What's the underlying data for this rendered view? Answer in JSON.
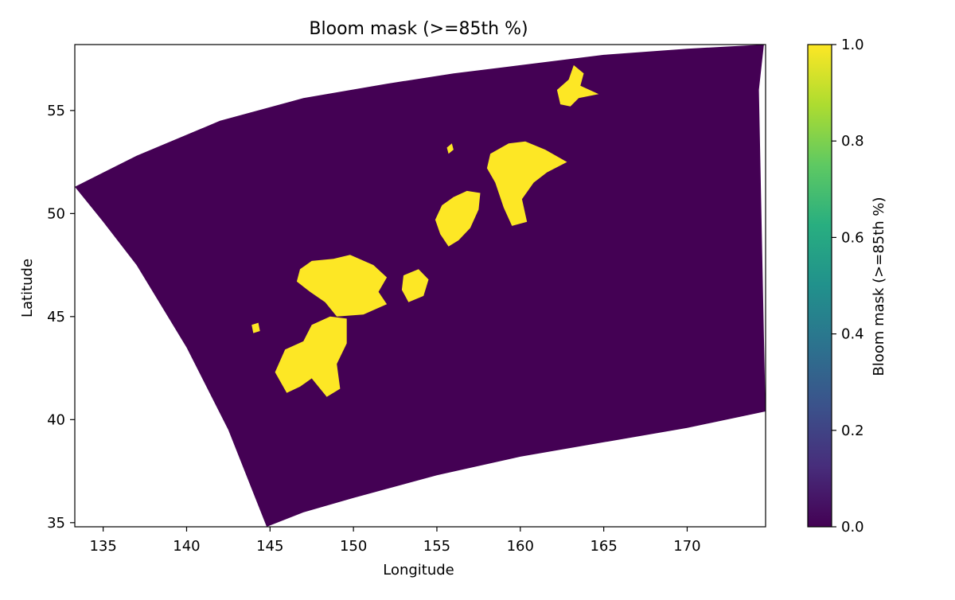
{
  "chart_data": {
    "type": "heatmap",
    "title": "Bloom mask (>=85th %)",
    "xlabel": "Longitude",
    "ylabel": "Latitude",
    "xlim": [
      133.3,
      174.7
    ],
    "ylim": [
      34.8,
      58.2
    ],
    "x_ticks": [
      135,
      140,
      145,
      150,
      155,
      160,
      165,
      170
    ],
    "y_ticks": [
      35,
      40,
      45,
      50,
      55
    ],
    "colorbar": {
      "label": "Bloom mask (>=85th %)",
      "range": [
        0.0,
        1.0
      ],
      "ticks": [
        0.0,
        0.2,
        0.4,
        0.6,
        0.8,
        1.0
      ],
      "tick_labels": [
        "0.0",
        "0.2",
        "0.4",
        "0.6",
        "0.8",
        "1.0"
      ],
      "colormap": "viridis"
    },
    "grid": false,
    "colors": {
      "mask_zero": "#440154",
      "mask_one": "#fde725"
    },
    "domain_outline_lonlat": [
      [
        133.3,
        51.3
      ],
      [
        137.0,
        52.8
      ],
      [
        142.0,
        54.5
      ],
      [
        147.0,
        55.6
      ],
      [
        152.0,
        56.3
      ],
      [
        156.0,
        56.8
      ],
      [
        160.0,
        57.2
      ],
      [
        165.0,
        57.7
      ],
      [
        170.0,
        58.0
      ],
      [
        174.6,
        58.2
      ],
      [
        174.3,
        56.0
      ],
      [
        174.4,
        52.0
      ],
      [
        174.5,
        48.0
      ],
      [
        174.6,
        44.0
      ],
      [
        174.7,
        40.4
      ],
      [
        170.0,
        39.6
      ],
      [
        165.0,
        38.9
      ],
      [
        160.0,
        38.2
      ],
      [
        155.0,
        37.3
      ],
      [
        150.0,
        36.2
      ],
      [
        147.0,
        35.5
      ],
      [
        144.8,
        34.8
      ],
      [
        142.5,
        39.5
      ],
      [
        140.0,
        43.5
      ],
      [
        137.0,
        47.5
      ],
      [
        135.0,
        49.6
      ],
      [
        133.3,
        51.3
      ]
    ],
    "bloom_patches_lonlat": [
      {
        "name": "patch-150-47",
        "value": 1,
        "points": [
          [
            146.8,
            47.3
          ],
          [
            147.5,
            47.7
          ],
          [
            148.8,
            47.8
          ],
          [
            149.8,
            48.0
          ],
          [
            151.2,
            47.5
          ],
          [
            152.0,
            46.9
          ],
          [
            151.5,
            46.2
          ],
          [
            152.0,
            45.6
          ],
          [
            150.6,
            45.1
          ],
          [
            149.0,
            45.0
          ],
          [
            148.3,
            45.7
          ],
          [
            147.4,
            46.2
          ],
          [
            146.6,
            46.7
          ]
        ]
      },
      {
        "name": "patch-148-43",
        "value": 1,
        "points": [
          [
            147.5,
            44.6
          ],
          [
            148.6,
            45.0
          ],
          [
            149.6,
            44.9
          ],
          [
            149.6,
            43.7
          ],
          [
            149.0,
            42.7
          ],
          [
            149.2,
            41.5
          ],
          [
            148.4,
            41.1
          ],
          [
            147.5,
            42.0
          ],
          [
            146.8,
            41.6
          ],
          [
            146.0,
            41.3
          ],
          [
            145.3,
            42.3
          ],
          [
            145.9,
            43.4
          ],
          [
            147.0,
            43.8
          ]
        ]
      },
      {
        "name": "patch-159-52",
        "value": 1,
        "points": [
          [
            158.2,
            52.9
          ],
          [
            159.3,
            53.4
          ],
          [
            160.3,
            53.5
          ],
          [
            161.5,
            53.1
          ],
          [
            162.8,
            52.5
          ],
          [
            161.6,
            52.0
          ],
          [
            160.8,
            51.5
          ],
          [
            160.1,
            50.7
          ],
          [
            160.4,
            49.6
          ],
          [
            159.5,
            49.4
          ],
          [
            159.0,
            50.3
          ],
          [
            158.5,
            51.5
          ],
          [
            158.0,
            52.2
          ]
        ]
      },
      {
        "name": "patch-156-50",
        "value": 1,
        "points": [
          [
            155.3,
            50.4
          ],
          [
            156.0,
            50.8
          ],
          [
            156.8,
            51.1
          ],
          [
            157.6,
            51.0
          ],
          [
            157.5,
            50.2
          ],
          [
            157.0,
            49.3
          ],
          [
            156.3,
            48.7
          ],
          [
            155.7,
            48.4
          ],
          [
            155.2,
            49.0
          ],
          [
            154.9,
            49.7
          ]
        ]
      },
      {
        "name": "patch-163-56",
        "value": 1,
        "points": [
          [
            162.2,
            56.0
          ],
          [
            162.9,
            56.5
          ],
          [
            163.2,
            57.2
          ],
          [
            163.8,
            56.8
          ],
          [
            163.6,
            56.2
          ],
          [
            164.7,
            55.8
          ],
          [
            163.5,
            55.6
          ],
          [
            163.0,
            55.2
          ],
          [
            162.4,
            55.3
          ]
        ]
      },
      {
        "name": "patch-154-46",
        "value": 1,
        "points": [
          [
            153.0,
            47.0
          ],
          [
            153.9,
            47.3
          ],
          [
            154.5,
            46.8
          ],
          [
            154.2,
            46.0
          ],
          [
            153.3,
            45.7
          ],
          [
            152.9,
            46.3
          ]
        ]
      },
      {
        "name": "patch-155-53",
        "value": 1,
        "points": [
          [
            155.6,
            53.2
          ],
          [
            155.9,
            53.4
          ],
          [
            156.0,
            53.1
          ],
          [
            155.7,
            52.9
          ]
        ]
      },
      {
        "name": "patch-144-44",
        "value": 1,
        "points": [
          [
            143.9,
            44.6
          ],
          [
            144.3,
            44.7
          ],
          [
            144.4,
            44.3
          ],
          [
            144.0,
            44.2
          ]
        ]
      }
    ]
  }
}
